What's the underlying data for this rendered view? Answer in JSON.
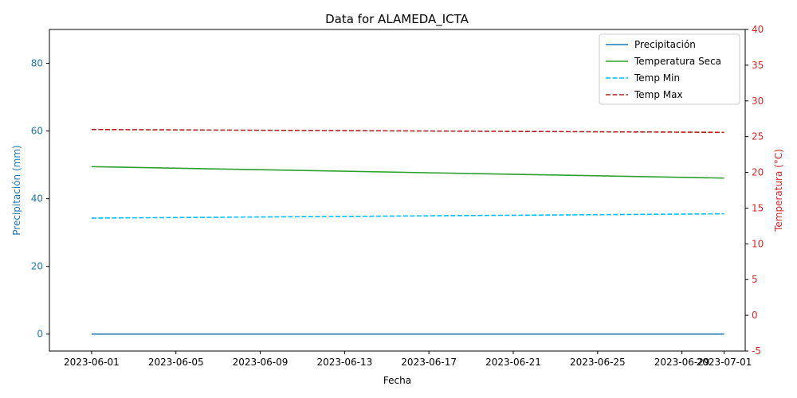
{
  "chart_data": {
    "type": "line",
    "title": "Data for ALAMEDA_ICTA",
    "xlabel": "Fecha",
    "ylabel_left": "Precipitación (mm)",
    "ylabel_right": "Temperatura (°C)",
    "x_ticks": [
      "2023-06-01",
      "2023-06-05",
      "2023-06-09",
      "2023-06-13",
      "2023-06-17",
      "2023-06-21",
      "2023-06-25",
      "2023-06-29",
      "2023-07-01"
    ],
    "x_range": [
      "2023-05-30",
      "2023-07-02"
    ],
    "ylim_left": [
      -5,
      90
    ],
    "yticks_left": [
      0,
      20,
      40,
      60,
      80
    ],
    "ylim_right": [
      -5,
      40
    ],
    "yticks_right": [
      -5,
      0,
      5,
      10,
      15,
      20,
      25,
      30,
      35,
      40
    ],
    "left_axis_color": "#1f77b4",
    "right_axis_color": "#d62728",
    "legend_position": "top-right",
    "series": [
      {
        "name": "Precipitación",
        "axis": "left",
        "color": "#1f77b4",
        "style": "solid",
        "x": [
          "2023-06-01",
          "2023-07-01"
        ],
        "y": [
          0,
          0
        ]
      },
      {
        "name": "Temperatura Seca",
        "axis": "right",
        "color": "#2ca02c",
        "style": "solid",
        "x": [
          "2023-06-01",
          "2023-07-01"
        ],
        "y": [
          20.8,
          19.2
        ]
      },
      {
        "name": "Temp Min",
        "axis": "right",
        "color": "#00bfff",
        "style": "dashed",
        "x": [
          "2023-06-01",
          "2023-07-01"
        ],
        "y": [
          13.6,
          14.2
        ]
      },
      {
        "name": "Temp Max",
        "axis": "right",
        "color": "#b22222",
        "style": "dashed",
        "x": [
          "2023-06-01",
          "2023-07-01"
        ],
        "y": [
          26.0,
          25.6
        ]
      }
    ]
  }
}
